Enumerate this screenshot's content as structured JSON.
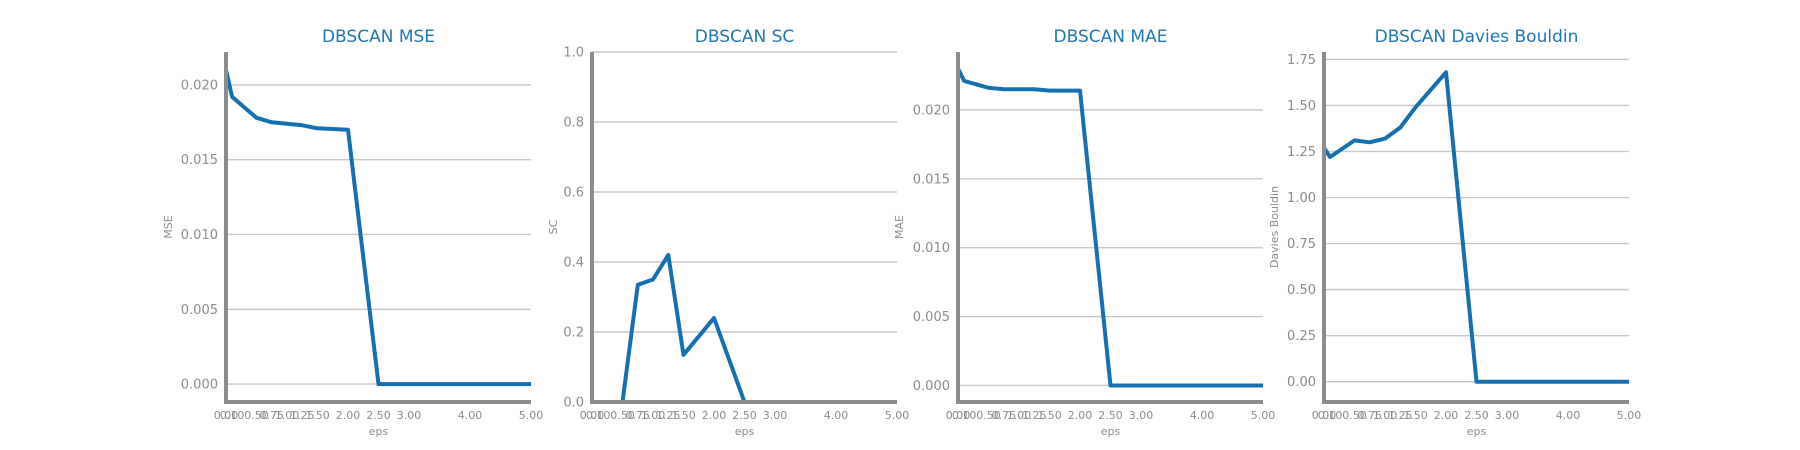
{
  "figure": {
    "background": "#ffffff"
  },
  "style": {
    "line_color": "#1470b0",
    "title_color": "#1f77b4",
    "axis_color": "#8c8c8c",
    "grid_color": "#c8c8c8"
  },
  "chart_data": [
    {
      "type": "line",
      "title": "DBSCAN MSE",
      "xlabel": "eps",
      "ylabel": "MSE",
      "grid": true,
      "xlim": [
        0,
        5
      ],
      "ylim": [
        -0.0012,
        0.0222
      ],
      "x": [
        0.0,
        0.1,
        0.5,
        0.75,
        1.0,
        1.25,
        1.5,
        2.0,
        2.5,
        3.0,
        4.0,
        5.0
      ],
      "y": [
        0.021,
        0.0192,
        0.0178,
        0.0175,
        0.0174,
        0.0173,
        0.0171,
        0.017,
        0.0,
        0.0,
        0.0,
        0.0
      ],
      "xticks": [
        0.0,
        0.1,
        0.5,
        0.75,
        1.0,
        1.25,
        1.5,
        2.0,
        2.5,
        3.0,
        4.0,
        5.0
      ],
      "xtick_labels": [
        "0.00",
        "0.10",
        "0.50",
        "0.75",
        "1.00",
        "1.25",
        "1.50",
        "2.00",
        "2.50",
        "3.00",
        "4.00",
        "5.00"
      ],
      "yticks": [
        0.0,
        0.005,
        0.01,
        0.015,
        0.02
      ],
      "ytick_labels": [
        "0.000",
        "0.005",
        "0.010",
        "0.015",
        "0.020"
      ]
    },
    {
      "type": "line",
      "title": "DBSCAN SC",
      "xlabel": "eps",
      "ylabel": "SC",
      "grid": true,
      "xlim": [
        0,
        5
      ],
      "ylim": [
        0.0,
        1.0
      ],
      "x": [
        0.0,
        0.1,
        0.25,
        0.5,
        0.75,
        1.0,
        1.25,
        1.5,
        2.0,
        2.5,
        3.0,
        4.0,
        5.0
      ],
      "y": [
        0.0,
        0.0,
        0.0,
        0.0,
        0.335,
        0.35,
        0.42,
        0.135,
        0.24,
        0.0,
        0.0,
        0.0,
        0.0
      ],
      "xticks": [
        0.0,
        0.1,
        0.5,
        0.75,
        1.0,
        1.25,
        1.5,
        2.0,
        2.5,
        3.0,
        4.0,
        5.0
      ],
      "xtick_labels": [
        "0.00",
        "0.10",
        "0.50",
        "0.75",
        "1.00",
        "1.25",
        "1.50",
        "2.00",
        "2.50",
        "3.00",
        "4.00",
        "5.00"
      ],
      "yticks": [
        0.0,
        0.2,
        0.4,
        0.6,
        0.8,
        1.0
      ],
      "ytick_labels": [
        "0.0",
        "0.2",
        "0.4",
        "0.6",
        "0.8",
        "1.0"
      ]
    },
    {
      "type": "line",
      "title": "DBSCAN MAE",
      "xlabel": "eps",
      "ylabel": "MAE",
      "grid": true,
      "xlim": [
        0,
        5
      ],
      "ylim": [
        -0.0012,
        0.0242
      ],
      "x": [
        0.0,
        0.1,
        0.5,
        0.75,
        1.0,
        1.25,
        1.5,
        2.0,
        2.5,
        3.0,
        4.0,
        5.0
      ],
      "y": [
        0.023,
        0.0221,
        0.0216,
        0.0215,
        0.0215,
        0.0215,
        0.0214,
        0.0214,
        0.0,
        0.0,
        0.0,
        0.0
      ],
      "xticks": [
        0.0,
        0.1,
        0.5,
        0.75,
        1.0,
        1.25,
        1.5,
        2.0,
        2.5,
        3.0,
        4.0,
        5.0
      ],
      "xtick_labels": [
        "0.00",
        "0.10",
        "0.50",
        "0.75",
        "1.00",
        "1.25",
        "1.50",
        "2.00",
        "2.50",
        "3.00",
        "4.00",
        "5.00"
      ],
      "yticks": [
        0.0,
        0.005,
        0.01,
        0.015,
        0.02
      ],
      "ytick_labels": [
        "0.000",
        "0.005",
        "0.010",
        "0.015",
        "0.020"
      ]
    },
    {
      "type": "line",
      "title": "DBSCAN Davies Bouldin",
      "xlabel": "eps",
      "ylabel": "Davies Bouldin",
      "grid": true,
      "xlim": [
        0,
        5
      ],
      "ylim": [
        -0.11,
        1.79
      ],
      "x": [
        0.0,
        0.1,
        0.5,
        0.75,
        1.0,
        1.25,
        1.5,
        2.0,
        2.5,
        3.0,
        4.0,
        5.0
      ],
      "y": [
        1.27,
        1.22,
        1.31,
        1.3,
        1.32,
        1.38,
        1.49,
        1.68,
        0.0,
        0.0,
        0.0,
        0.0
      ],
      "xticks": [
        0.0,
        0.1,
        0.5,
        0.75,
        1.0,
        1.25,
        1.5,
        2.0,
        2.5,
        3.0,
        4.0,
        5.0
      ],
      "xtick_labels": [
        "0.00",
        "0.10",
        "0.50",
        "0.75",
        "1.00",
        "1.25",
        "1.50",
        "2.00",
        "2.50",
        "3.00",
        "4.00",
        "5.00"
      ],
      "yticks": [
        0.0,
        0.25,
        0.5,
        0.75,
        1.0,
        1.25,
        1.5,
        1.75
      ],
      "ytick_labels": [
        "0.00",
        "0.25",
        "0.50",
        "0.75",
        "1.00",
        "1.25",
        "1.50",
        "1.75"
      ]
    }
  ]
}
